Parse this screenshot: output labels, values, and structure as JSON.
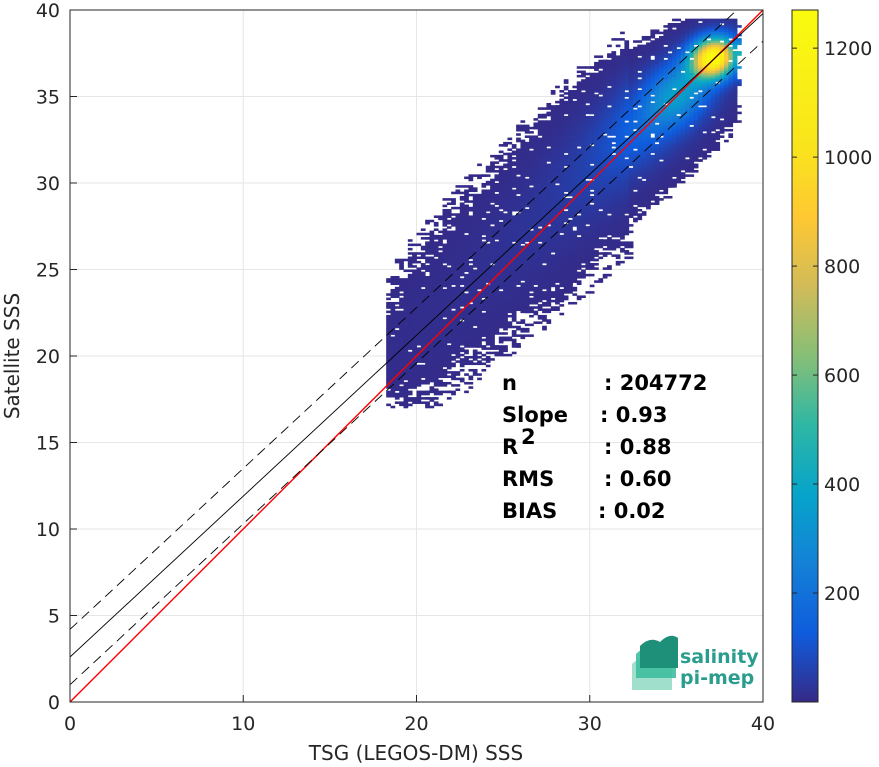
{
  "chart_data": {
    "type": "scatter",
    "subtype": "2d-density-histogram",
    "xlabel": "TSG (LEGOS-DM) SSS",
    "ylabel": "Satellite SSS",
    "xlim": [
      0,
      40
    ],
    "ylim": [
      0,
      40
    ],
    "xticks": [
      0,
      10,
      20,
      30,
      40
    ],
    "yticks": [
      0,
      5,
      10,
      15,
      20,
      25,
      30,
      35,
      40
    ],
    "grid": true,
    "colormap": "parula",
    "colorbar": {
      "min": 0,
      "max": 1270,
      "ticks": [
        200,
        400,
        600,
        800,
        1000,
        1200
      ]
    },
    "lines": [
      {
        "name": "1:1",
        "color": "#ff0000",
        "style": "solid",
        "x": [
          0,
          40
        ],
        "y": [
          0,
          40
        ]
      },
      {
        "name": "fit",
        "color": "#000000",
        "style": "solid",
        "x": [
          0,
          40
        ],
        "y": [
          2.6,
          39.8
        ]
      },
      {
        "name": "fit+",
        "color": "#000000",
        "style": "dashed",
        "x": [
          0,
          40
        ],
        "y": [
          4.2,
          41.4
        ]
      },
      {
        "name": "fit-",
        "color": "#000000",
        "style": "dashed",
        "x": [
          0,
          40
        ],
        "y": [
          1.0,
          38.2
        ]
      }
    ],
    "density_centers": [
      {
        "x": 37.0,
        "y": 37.2,
        "peak": 1270,
        "sx": 0.9,
        "sy": 0.8
      },
      {
        "x": 35.0,
        "y": 35.2,
        "peak": 320,
        "sx": 1.5,
        "sy": 1.5
      },
      {
        "x": 33.0,
        "y": 33.0,
        "peak": 120,
        "sx": 2.0,
        "sy": 2.0
      },
      {
        "x": 30.0,
        "y": 30.5,
        "peak": 40,
        "sx": 2.5,
        "sy": 2.5
      },
      {
        "x": 26.0,
        "y": 26.5,
        "peak": 15,
        "sx": 3.0,
        "sy": 3.0
      },
      {
        "x": 21.0,
        "y": 21.5,
        "peak": 6,
        "sx": 2.5,
        "sy": 2.5
      }
    ],
    "stats": [
      {
        "label": "n",
        "value": ": 204772"
      },
      {
        "label": "Slope",
        "value": ": 0.93"
      },
      {
        "label": "R",
        "sup": "2",
        "value": ": 0.88"
      },
      {
        "label": "RMS",
        "value": ": 0.60"
      },
      {
        "label": "BIAS",
        "value": ": 0.02"
      }
    ]
  },
  "logo": {
    "line1": "salinity",
    "line2": "pi-mep"
  }
}
